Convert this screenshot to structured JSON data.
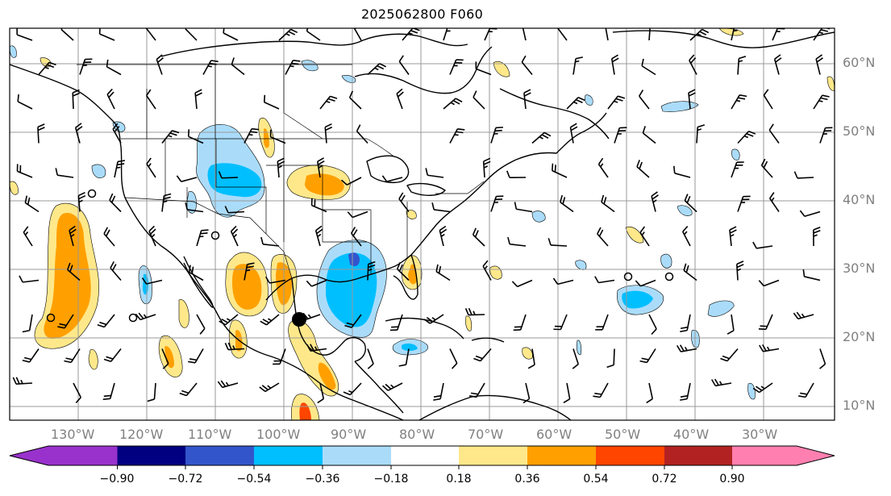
{
  "title": "2025062800 F060",
  "latitude_labels": [
    "60°N",
    "50°N",
    "40°N",
    "30°N",
    "20°N",
    "10°N"
  ],
  "longitude_labels": [
    "130°W",
    "120°W",
    "110°W",
    "100°W",
    "90°W",
    "80°W",
    "70°W",
    "60°W",
    "50°W",
    "40°W",
    "30°W"
  ],
  "colorbar": {
    "ticks": [
      "−0.90",
      "−0.72",
      "−0.54",
      "−0.36",
      "−0.18",
      "0.18",
      "0.36",
      "0.54",
      "0.72",
      "0.90"
    ],
    "colors": {
      "under": "#9932cc",
      "b1": "#000080",
      "b2": "#3355cc",
      "b3": "#00bfff",
      "b4": "#aadcfa",
      "b5": "#ffffff",
      "b6": "#ffe88a",
      "b7": "#ffa000",
      "b8": "#ff4500",
      "b9": "#b22222",
      "over": "#ff80b0"
    }
  },
  "marker": {
    "label": "",
    "lat": 23,
    "lon": -97.5
  }
}
